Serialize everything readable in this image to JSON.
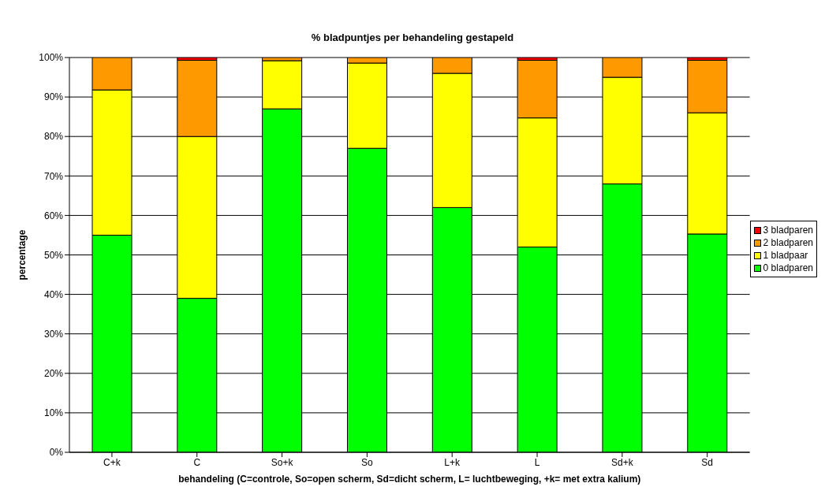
{
  "chart_data": {
    "type": "bar",
    "title": "% bladpuntjes per behandeling gestapeld",
    "xlabel": "behandeling (C=controle, So=open scherm, Sd=dicht scherm, L= luchtbeweging, +k= met extra kalium)",
    "ylabel": "percentage",
    "categories": [
      "C+k",
      "C",
      "So+k",
      "So",
      "L+k",
      "L",
      "Sd+k",
      "Sd"
    ],
    "stacked": true,
    "series": [
      {
        "name": "0 bladparen",
        "color": "#00ff00",
        "values": [
          55,
          39,
          87,
          77,
          62,
          52,
          68,
          55.3
        ]
      },
      {
        "name": "1 bladpaar",
        "color": "#ffff00",
        "values": [
          36.8,
          41,
          12.2,
          21.6,
          34,
          32.7,
          27,
          30.7
        ]
      },
      {
        "name": "2 bladparen",
        "color": "#ff9900",
        "values": [
          8.2,
          19.3,
          0.8,
          1.4,
          4,
          14.6,
          5,
          13.3
        ]
      },
      {
        "name": "3 bladparen",
        "color": "#ff0000",
        "values": [
          0,
          0.7,
          0,
          0,
          0,
          0.7,
          0,
          0.7
        ]
      }
    ],
    "ylim": [
      0,
      100
    ],
    "yticks": [
      {
        "value": 0,
        "label": "0%"
      },
      {
        "value": 10,
        "label": "10%"
      },
      {
        "value": 20,
        "label": "20%"
      },
      {
        "value": 30,
        "label": "30%"
      },
      {
        "value": 40,
        "label": "40%"
      },
      {
        "value": 50,
        "label": "50%"
      },
      {
        "value": 60,
        "label": "60%"
      },
      {
        "value": 70,
        "label": "70%"
      },
      {
        "value": 80,
        "label": "80%"
      },
      {
        "value": 90,
        "label": "90%"
      },
      {
        "value": 100,
        "label": "100%"
      }
    ],
    "grid": "y",
    "legend": "right"
  }
}
